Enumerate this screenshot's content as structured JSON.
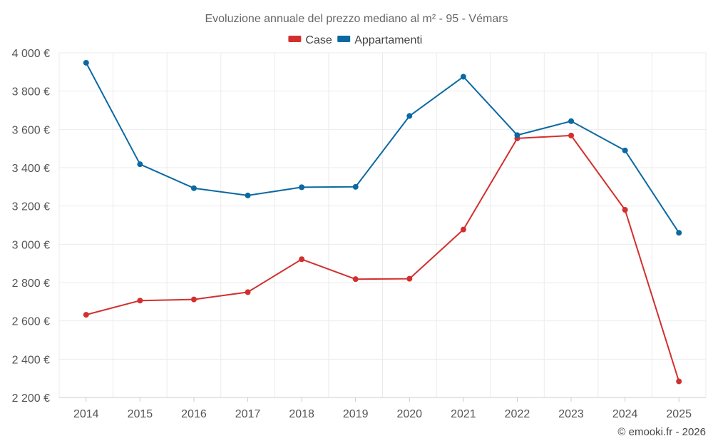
{
  "chart_data": {
    "type": "line",
    "title": "Evoluzione annuale del prezzo mediano al m² - 95 - Vémars",
    "xlabel": "",
    "ylabel": "",
    "categories": [
      "2014",
      "2015",
      "2016",
      "2017",
      "2018",
      "2019",
      "2020",
      "2021",
      "2022",
      "2023",
      "2024",
      "2025"
    ],
    "series": [
      {
        "name": "Case",
        "color": "#d32f2f",
        "values": [
          2632,
          2706,
          2712,
          2750,
          2922,
          2818,
          2820,
          3077,
          3553,
          3568,
          3180,
          2284
        ]
      },
      {
        "name": "Appartamenti",
        "color": "#0a69a2",
        "values": [
          3948,
          3418,
          3293,
          3255,
          3298,
          3300,
          3670,
          3875,
          3570,
          3643,
          3490,
          3060
        ]
      }
    ],
    "ylim": [
      2200,
      4000
    ],
    "yticks": [
      2200,
      2400,
      2600,
      2800,
      3000,
      3200,
      3400,
      3600,
      3800,
      4000
    ],
    "ytick_labels": [
      "2 200 €",
      "2 400 €",
      "2 600 €",
      "2 800 €",
      "3 000 €",
      "3 200 €",
      "3 400 €",
      "3 600 €",
      "3 800 €",
      "4 000 €"
    ],
    "grid": true,
    "legend_position": "top-center"
  },
  "credit": "© emooki.fr - 2026"
}
